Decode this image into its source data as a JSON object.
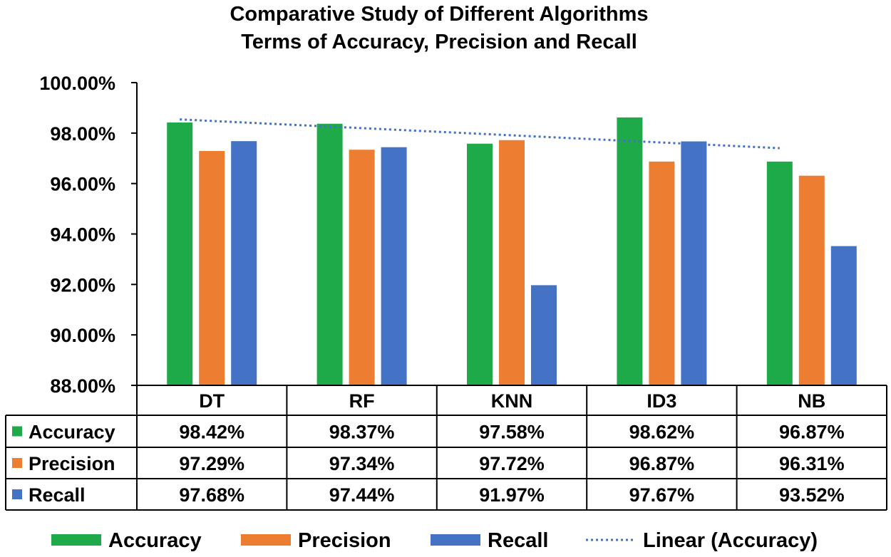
{
  "chart_data": {
    "type": "bar",
    "title": "Comparative Study of Different Algorithms",
    "subtitle": "Terms of Accuracy, Precision and Recall",
    "categories": [
      "DT",
      "RF",
      "KNN",
      "ID3",
      "NB"
    ],
    "series": [
      {
        "name": "Accuracy",
        "color": "#1faa4a",
        "values": [
          98.42,
          98.37,
          97.58,
          98.62,
          96.87
        ],
        "labels": [
          "98.42%",
          "98.37%",
          "97.58%",
          "98.62%",
          "96.87%"
        ]
      },
      {
        "name": "Precision",
        "color": "#ed7d31",
        "values": [
          97.29,
          97.34,
          97.72,
          96.87,
          96.31
        ],
        "labels": [
          "97.29%",
          "97.34%",
          "97.72%",
          "96.87%",
          "96.31%"
        ]
      },
      {
        "name": "Recall",
        "color": "#4472c4",
        "values": [
          97.68,
          97.44,
          91.97,
          97.67,
          93.52
        ],
        "labels": [
          "97.68%",
          "97.44%",
          "91.97%",
          "97.67%",
          "93.52%"
        ]
      }
    ],
    "trendline": {
      "name": "Linear (Accuracy)",
      "series": "Accuracy",
      "color": "#4472c4"
    },
    "ylim": [
      88,
      100
    ],
    "yticks": [
      88,
      90,
      92,
      94,
      96,
      98,
      100
    ],
    "ytick_labels": [
      "88.00%",
      "90.00%",
      "92.00%",
      "94.00%",
      "96.00%",
      "98.00%",
      "100.00%"
    ],
    "xlabel": "",
    "ylabel": "",
    "grid": false,
    "legend_position": "bottom",
    "data_table": true
  }
}
